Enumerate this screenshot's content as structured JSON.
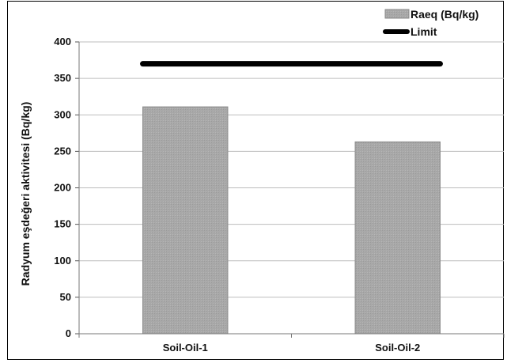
{
  "chart_data": {
    "type": "bar",
    "categories": [
      "Soil-Oil-1",
      "Soil-Oil-2"
    ],
    "series": [
      {
        "name": "Raeq (Bq/kg)",
        "type": "bar",
        "values": [
          311,
          263
        ]
      },
      {
        "name": "Limit",
        "type": "line",
        "values": [
          370,
          370
        ]
      }
    ],
    "title": "",
    "xlabel": "",
    "ylabel": "Radyum eşdeğeri aktivitesi (Bq/kg)",
    "ylim": [
      0,
      400
    ],
    "yticks": [
      0,
      50,
      100,
      150,
      200,
      250,
      300,
      350,
      400
    ],
    "grid": true,
    "legend_position": "top-right",
    "colors": {
      "bar_fill": "#a8a8a8",
      "bar_edge": "#8a8a8a",
      "limit_line": "#000000",
      "grid": "#bdbdbd"
    }
  }
}
